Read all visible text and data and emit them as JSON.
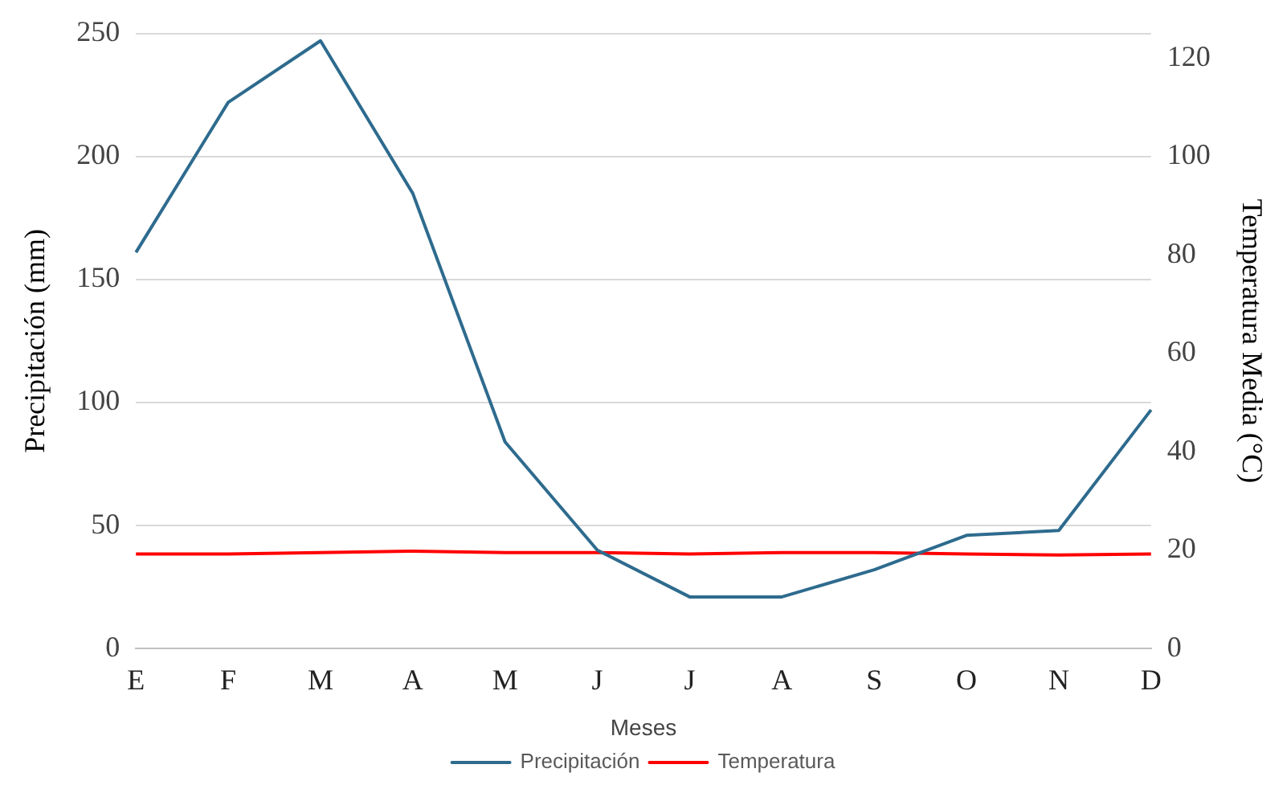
{
  "chart_data": {
    "type": "line",
    "xlabel": "Meses",
    "ylabel": "Precipitación (mm)",
    "y2label": "Temperatura Media (°C)",
    "categories": [
      "E",
      "F",
      "M",
      "A",
      "M",
      "J",
      "J",
      "A",
      "S",
      "O",
      "N",
      "D"
    ],
    "series": [
      {
        "name": "Precipitación",
        "color": "#2e6b8e",
        "values": [
          161,
          222,
          247,
          185,
          84,
          40,
          21,
          21,
          32,
          46,
          48,
          97
        ]
      },
      {
        "name": "Temperatura",
        "color": "#ff0000",
        "axis": "y2",
        "values": [
          19.2,
          19.2,
          19.5,
          19.8,
          19.5,
          19.5,
          19.2,
          19.5,
          19.5,
          19.2,
          19,
          19.2
        ]
      }
    ],
    "ylim": [
      0,
      250
    ],
    "yticks": [
      0,
      50,
      100,
      150,
      200,
      250
    ],
    "y2lim": [
      0,
      125
    ],
    "y2ticks": [
      0,
      20,
      40,
      60,
      80,
      100,
      120
    ],
    "grid": "y",
    "legend": "bottom",
    "marker": "none",
    "line_style": "solid"
  }
}
